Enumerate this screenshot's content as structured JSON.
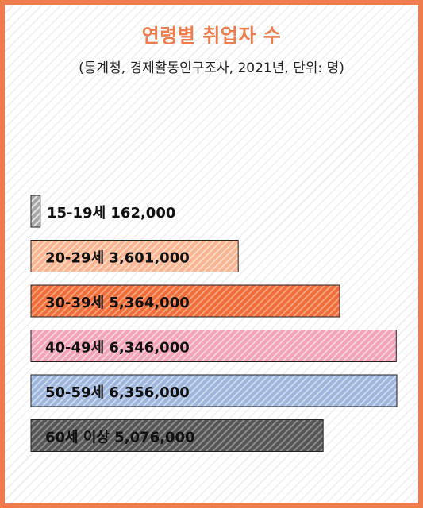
{
  "chart_data": {
    "type": "bar",
    "orientation": "horizontal",
    "title": "연령별 취업자 수",
    "subtitle": "(통계청, 경제활동인구조사, 2021년, 단위: 명)",
    "categories": [
      "15-19세",
      "20-29세",
      "30-39세",
      "40-49세",
      "50-59세",
      "60세 이상"
    ],
    "values": [
      162000,
      3601000,
      5364000,
      6346000,
      6356000,
      5076000
    ],
    "labels": [
      "162,000",
      "3,601,000",
      "5,364,000",
      "6,346,000",
      "6,356,000",
      "5,076,000"
    ],
    "xlim": [
      0,
      6356000
    ],
    "grid": false,
    "legend": "none",
    "colors": [
      "#a7a7a7",
      "#f9b592",
      "#ef6d39",
      "#f2a3b8",
      "#9fb6dc",
      "#555555"
    ],
    "stripe_colors": [
      "#e3e3e3",
      "#fdd9c5",
      "#f7a27c",
      "#f9d0dc",
      "#cbd9ef",
      "#8d8d8d"
    ]
  }
}
